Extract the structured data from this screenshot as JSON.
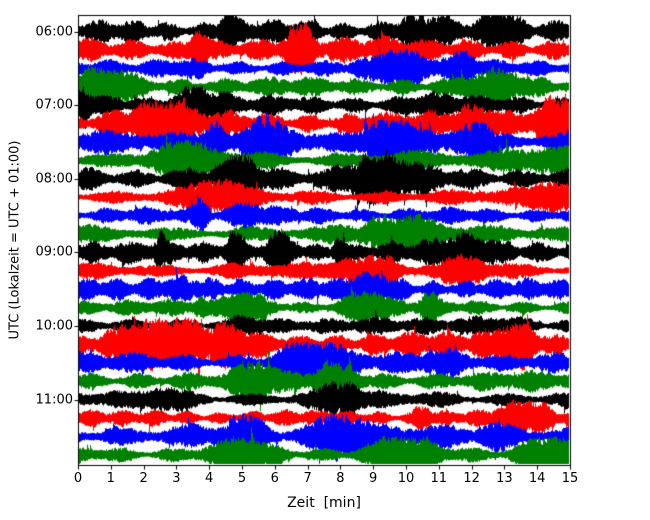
{
  "chart_data": {
    "type": "line",
    "variant": "seismogram_day_plot",
    "title": "",
    "xlabel": "Zeit  [min]",
    "ylabel": "UTC (Lokalzeit = UTC + 01:00)",
    "xlim_minutes": [
      0,
      15
    ],
    "x_ticks": [
      "0",
      "1",
      "2",
      "3",
      "4",
      "5",
      "6",
      "7",
      "8",
      "9",
      "10",
      "11",
      "12",
      "13",
      "14",
      "15"
    ],
    "y_tick_labels": [
      "06:00",
      "07:00",
      "08:00",
      "09:00",
      "10:00",
      "11:00"
    ],
    "minutes_per_trace": 15,
    "num_traces": 24,
    "traces_per_hour": 4,
    "first_trace_time": "06:00",
    "last_trace_time": "11:45",
    "trace_color_cycle": [
      "#000000",
      "#ff0000",
      "#0000ff",
      "#008000"
    ],
    "background_color": "#ffffff",
    "axis_color": "#000000",
    "legend": "none",
    "grid": "off",
    "content_description": "24 stacked 15-minute traces of continuous high-frequency seismic noise; line colors cycle black/red/blue/green from top to bottom, amplitudes clipped at the axes frame"
  }
}
